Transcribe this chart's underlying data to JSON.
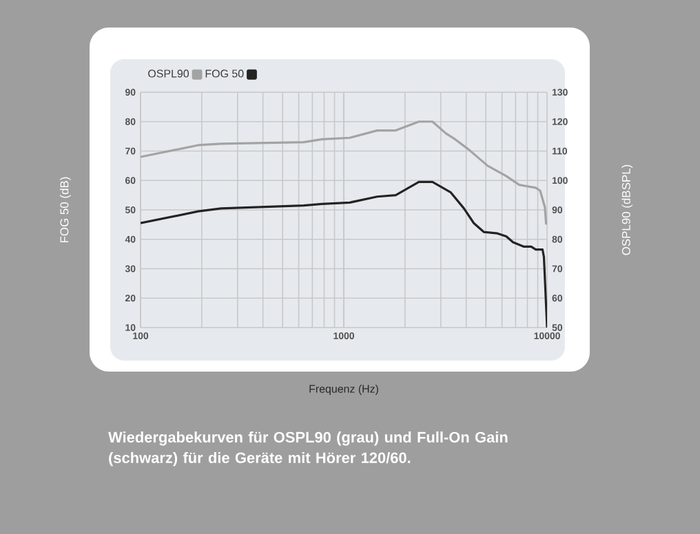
{
  "chart_data": {
    "type": "line",
    "xlabel": "Frequenz (Hz)",
    "ylabel": "FOG 50 (dB)",
    "y2label": "OSPL90 (dBSPL)",
    "annotations": [
      "Wiedergabekurven für OSPL90 (grau) und Full-On Gain (schwarz) für die Geräte mit Hörer 120/60."
    ],
    "log": "x",
    "xlim": [
      100,
      10000
    ],
    "xticks": [
      100,
      1000,
      10000
    ],
    "ylim": [
      10,
      90
    ],
    "yticks": [
      10,
      20,
      30,
      40,
      50,
      60,
      70,
      80,
      90
    ],
    "y2lim": [
      50,
      130
    ],
    "y2ticks": [
      50,
      60,
      70,
      80,
      90,
      100,
      110,
      120,
      130
    ],
    "grid": true,
    "legend": "top left",
    "series": [
      {
        "name": "OSPL90",
        "color": "#a3a3a3",
        "axis": "y2",
        "x": [
          100,
          192,
          249,
          635,
          780,
          1070,
          1460,
          1800,
          2340,
          2730,
          3180,
          3530,
          4120,
          5100,
          6300,
          7300,
          8800,
          9250,
          9750,
          9900
        ],
        "values": [
          108,
          112,
          112.5,
          113,
          114,
          114.5,
          117,
          117,
          120,
          120,
          116,
          114,
          110.5,
          105,
          101.5,
          98.5,
          97.5,
          96.5,
          91,
          85
        ]
      },
      {
        "name": "FOG 50",
        "color": "#232323",
        "x": [
          100,
          192,
          249,
          635,
          780,
          1070,
          1460,
          1800,
          2340,
          2730,
          3350,
          3900,
          4360,
          4880,
          5700,
          6300,
          6800,
          7700,
          8350,
          8800,
          9500,
          9650,
          10000
        ],
        "values": [
          45.5,
          49.5,
          50.5,
          51.5,
          52,
          52.5,
          54.5,
          55,
          59.5,
          59.5,
          56,
          50.5,
          45.5,
          42.5,
          42,
          41,
          39,
          37.5,
          37.5,
          36.5,
          36.5,
          34,
          10
        ]
      }
    ]
  }
}
